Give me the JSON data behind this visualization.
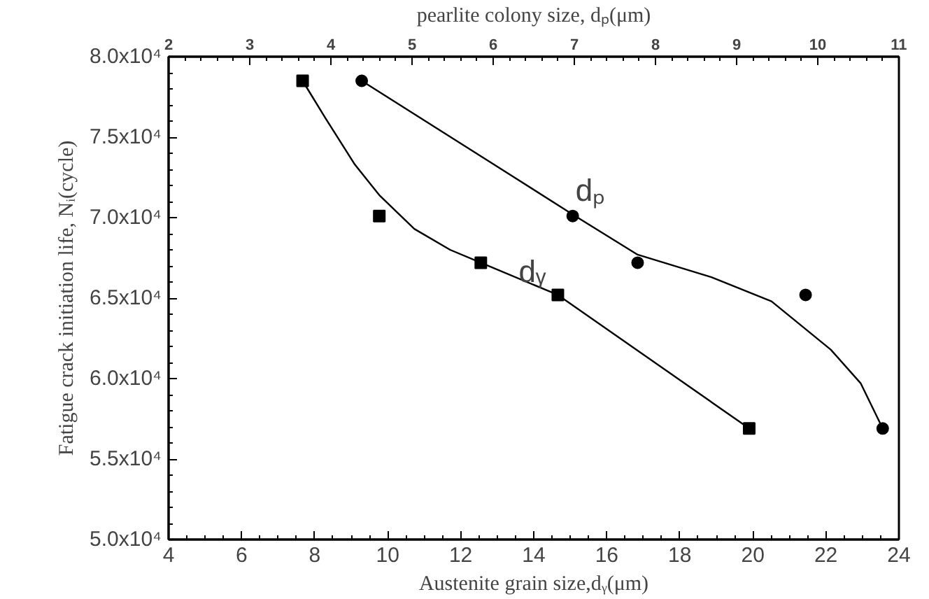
{
  "chart_data": {
    "type": "scatter",
    "xlabel": "Austenite grain size,dᵧ(μm)",
    "x2label": "pearlite colony size, dₚ(μm)",
    "ylabel": "Fatigue crack initiation life, Nᵢ(cycle)",
    "xlim": [
      4,
      24
    ],
    "xticks": [
      4,
      6,
      8,
      10,
      12,
      14,
      16,
      18,
      20,
      22,
      24
    ],
    "x2lim": [
      2,
      11
    ],
    "x2ticks": [
      2,
      3,
      4,
      5,
      6,
      7,
      8,
      9,
      10,
      11
    ],
    "ylim": [
      50000,
      80000
    ],
    "yticks": [
      {
        "value": 50000,
        "label": "5.0x10⁴"
      },
      {
        "value": 55000,
        "label": "5.5x10⁴"
      },
      {
        "value": 60000,
        "label": "6.0x10⁴"
      },
      {
        "value": 65000,
        "label": "6.5x10⁴"
      },
      {
        "value": 70000,
        "label": "7.0x10⁴"
      },
      {
        "value": 75000,
        "label": "7.5x10⁴"
      },
      {
        "value": 80000,
        "label": "8.0x10⁴"
      }
    ],
    "grid": false,
    "series": [
      {
        "name": "dᵧ",
        "marker": "square",
        "color": "#000000",
        "x": [
          7.67,
          9.77,
          12.55,
          14.66,
          19.9
        ],
        "values": [
          78500,
          70100,
          67200,
          65200,
          56900
        ]
      },
      {
        "name": "dₚ",
        "marker": "circle",
        "axis": "x2",
        "color": "#000000",
        "x": [
          4.38,
          6.98,
          7.78,
          9.85,
          10.8
        ],
        "values": [
          78500,
          70100,
          67200,
          65200,
          56900
        ]
      },
      {
        "type": "line",
        "marker": "none",
        "color": "#000000",
        "x": [
          7.67,
          8.29,
          9.1,
          9.77,
          10.73,
          11.71,
          12.55,
          14.66,
          19.9
        ],
        "values": [
          78500,
          76200,
          73300,
          71400,
          69300,
          68000,
          67200,
          65200,
          56900
        ]
      },
      {
        "type": "line",
        "marker": "none",
        "axis": "x2",
        "color": "#000000",
        "x": [
          4.38,
          5.76,
          6.98,
          7.78,
          8.69,
          9.43,
          10.16,
          10.53,
          10.8
        ],
        "values": [
          78500,
          74100,
          70200,
          67700,
          66300,
          64800,
          61800,
          59700,
          56900
        ]
      }
    ]
  }
}
